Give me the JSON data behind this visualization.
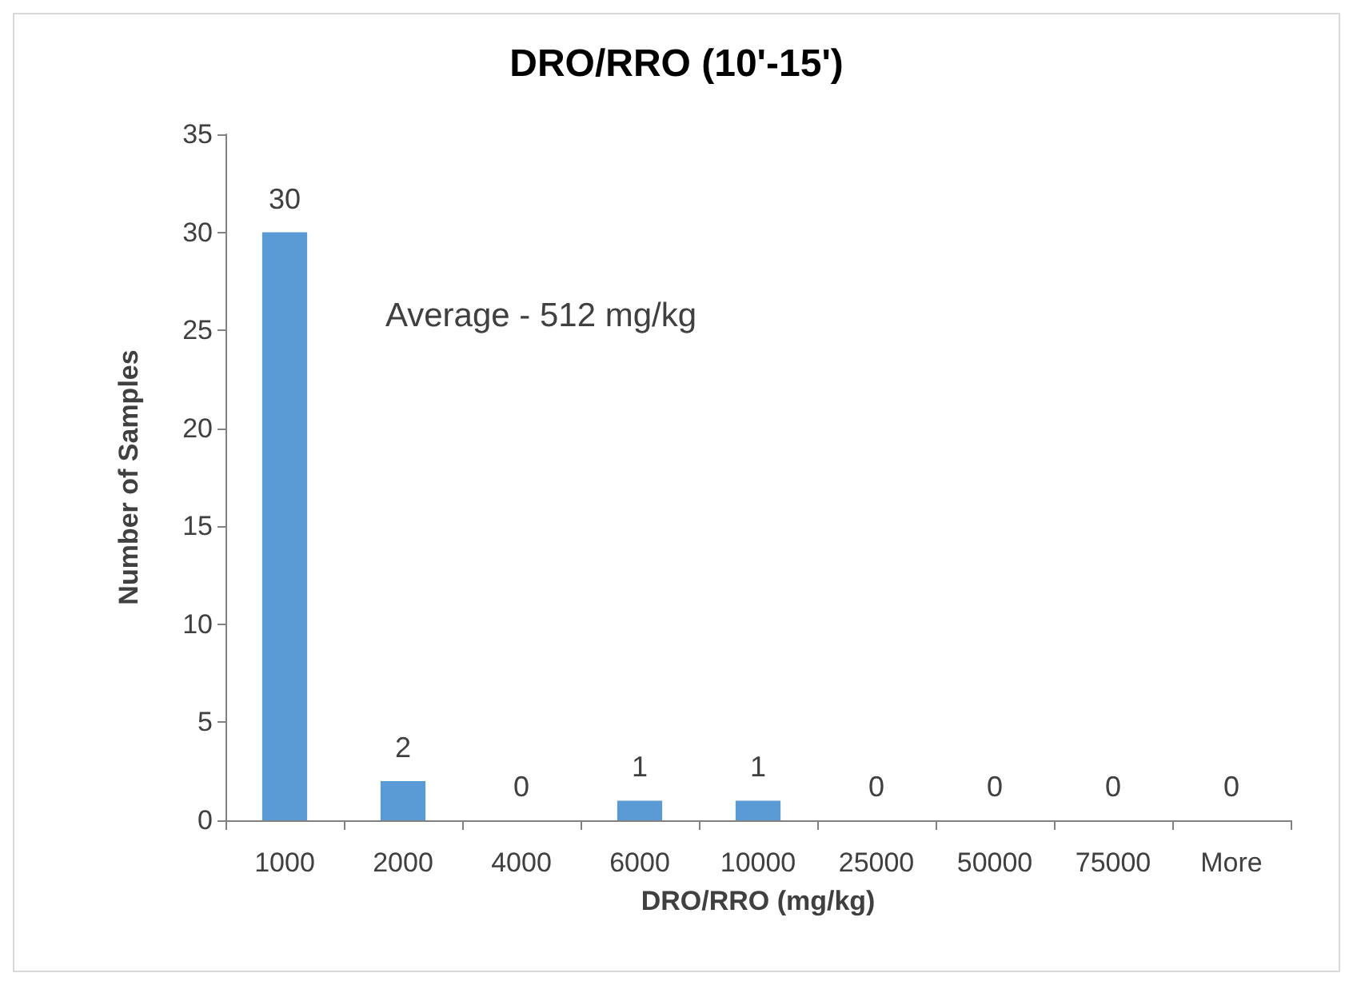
{
  "chart_data": {
    "type": "bar",
    "title": "DRO/RRO (10'-15')",
    "xlabel": "DRO/RRO (mg/kg)",
    "ylabel": "Number of Samples",
    "categories": [
      "1000",
      "2000",
      "4000",
      "6000",
      "10000",
      "25000",
      "50000",
      "75000",
      "More"
    ],
    "values": [
      30,
      2,
      0,
      1,
      1,
      0,
      0,
      0,
      0
    ],
    "color": "#5b9bd5",
    "ylim": [
      0,
      35
    ],
    "yticks": [
      0,
      5,
      10,
      15,
      20,
      25,
      30,
      35
    ],
    "data_labels": true,
    "annotations": [
      "Average - 512 mg/kg"
    ]
  }
}
